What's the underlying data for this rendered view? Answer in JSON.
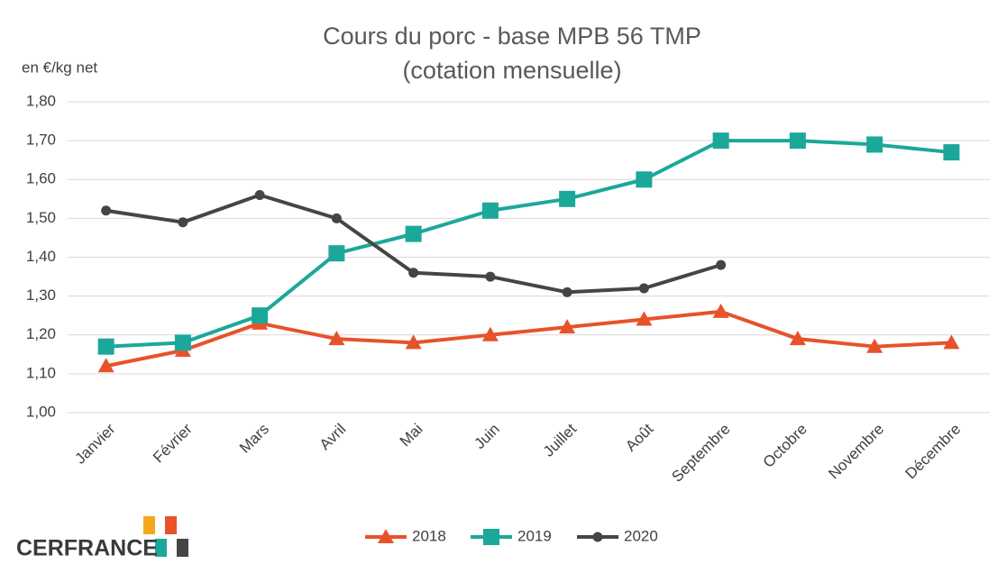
{
  "chart_data": {
    "type": "line",
    "title": "Cours du porc - base MPB 56 TMP",
    "subtitle": "(cotation mensuelle)",
    "y_label": "en €/kg net",
    "categories": [
      "Janvier",
      "Février",
      "Mars",
      "Avril",
      "Mai",
      "Juin",
      "Juillet",
      "Août",
      "Septembre",
      "Octobre",
      "Novembre",
      "Décembre"
    ],
    "series": [
      {
        "name": "2018",
        "color": "#e8522a",
        "marker": "triangle",
        "values": [
          1.12,
          1.16,
          1.23,
          1.19,
          1.18,
          1.2,
          1.22,
          1.24,
          1.26,
          1.19,
          1.17,
          1.18
        ]
      },
      {
        "name": "2019",
        "color": "#1ba89a",
        "marker": "square",
        "values": [
          1.17,
          1.18,
          1.25,
          1.41,
          1.46,
          1.52,
          1.55,
          1.6,
          1.7,
          1.7,
          1.69,
          1.67
        ]
      },
      {
        "name": "2020",
        "color": "#454545",
        "marker": "circle",
        "values": [
          1.52,
          1.49,
          1.56,
          1.5,
          1.36,
          1.35,
          1.31,
          1.32,
          1.38,
          null,
          null,
          null
        ]
      }
    ],
    "ylim": [
      1.0,
      1.8
    ],
    "yticks": [
      {
        "value": 1.0,
        "label": "1,00"
      },
      {
        "value": 1.1,
        "label": "1,10"
      },
      {
        "value": 1.2,
        "label": "1,20"
      },
      {
        "value": 1.3,
        "label": "1,30"
      },
      {
        "value": 1.4,
        "label": "1,40"
      },
      {
        "value": 1.5,
        "label": "1,50"
      },
      {
        "value": 1.6,
        "label": "1,60"
      },
      {
        "value": 1.7,
        "label": "1,70"
      },
      {
        "value": 1.8,
        "label": "1,80"
      }
    ],
    "grid": true,
    "legend": "bottom"
  },
  "logo": {
    "text": "CERFRANCE"
  }
}
